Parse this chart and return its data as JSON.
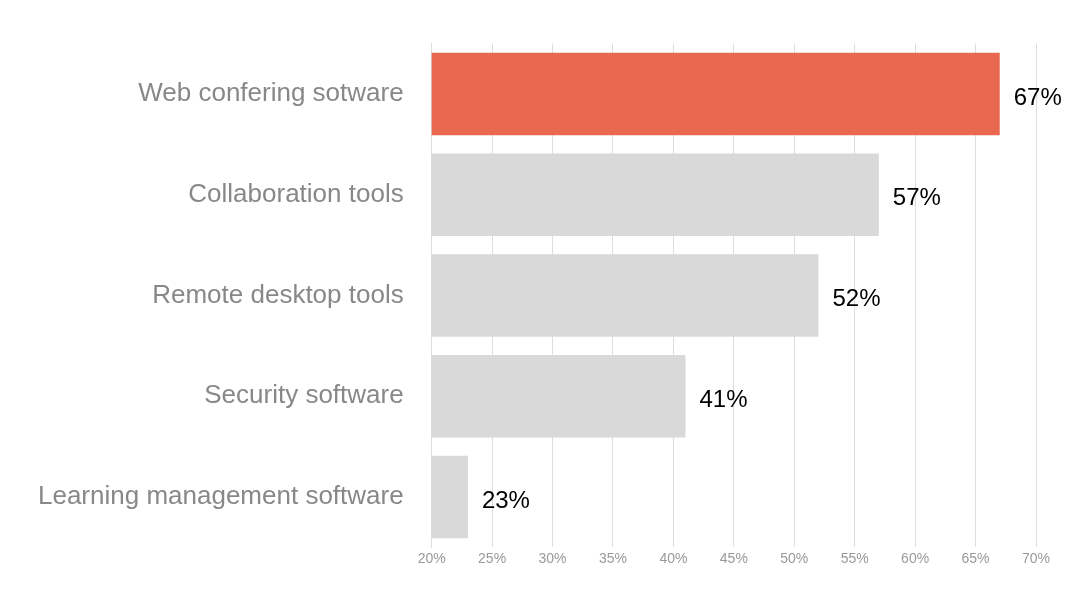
{
  "chart_data": {
    "type": "bar",
    "orientation": "horizontal",
    "categories": [
      "Web confering sotware",
      "Collaboration tools",
      "Remote desktop tools",
      "Security software",
      "Learning management software"
    ],
    "values": [
      67,
      57,
      52,
      41,
      23
    ],
    "colors": [
      "#e8694f",
      "#d9d9d9",
      "#d9d9d9",
      "#d9d9d9",
      "#d9d9d9"
    ],
    "value_labels": [
      "67%",
      "57%",
      "52%",
      "41%",
      "23%"
    ],
    "xlim": [
      20,
      70
    ],
    "xticks": [
      {
        "value": 20,
        "label": "20%"
      },
      {
        "value": 25,
        "label": "25%"
      },
      {
        "value": 30,
        "label": "30%"
      },
      {
        "value": 35,
        "label": "35%"
      },
      {
        "value": 40,
        "label": "40%"
      },
      {
        "value": 45,
        "label": "45%"
      },
      {
        "value": 50,
        "label": "50%"
      },
      {
        "value": 55,
        "label": "55%"
      },
      {
        "value": 60,
        "label": "60%"
      },
      {
        "value": 65,
        "label": "65%"
      },
      {
        "value": 70,
        "label": "70%"
      }
    ],
    "grid": "x",
    "legend": false
  }
}
